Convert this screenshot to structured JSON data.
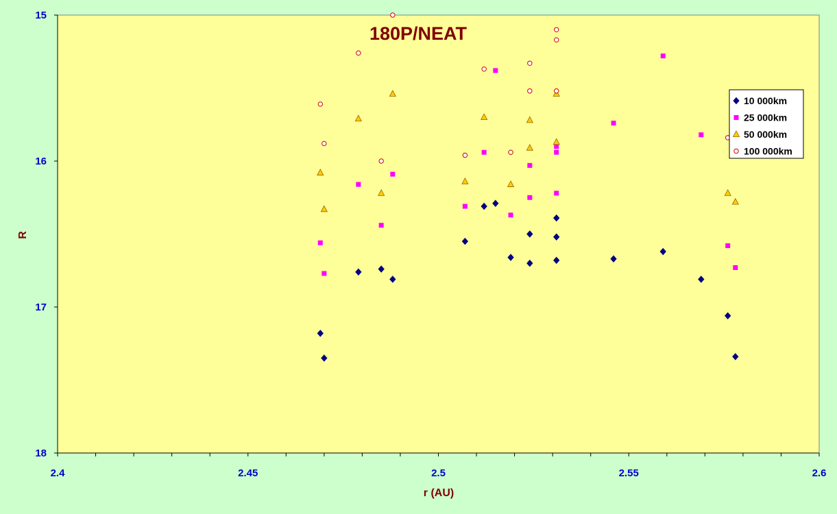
{
  "chart_data": {
    "type": "scatter",
    "title": "180P/NEAT",
    "xlabel": "r (AU)",
    "ylabel": "R",
    "xlim": [
      2.4,
      2.6
    ],
    "ylim": [
      15,
      18
    ],
    "y_inverted": true,
    "x_ticks": [
      "2.4",
      "2.45",
      "2.5",
      "2.55",
      "2.6"
    ],
    "y_ticks": [
      "15",
      "16",
      "17",
      "18"
    ],
    "x_tick_values": [
      2.4,
      2.45,
      2.5,
      2.55,
      2.6
    ],
    "y_tick_values": [
      15,
      16,
      17,
      18
    ],
    "x_minor_step": 0.01,
    "grid": false,
    "legend_position": "right",
    "colors": {
      "background": "#ccffcc",
      "plot_area": "#ffff99",
      "tick_labels": "#0000cc",
      "titles": "#800000"
    },
    "series": [
      {
        "name": "10 000km",
        "marker": "diamond",
        "color": "#000080",
        "points": [
          [
            2.469,
            17.18
          ],
          [
            2.47,
            17.35
          ],
          [
            2.479,
            16.76
          ],
          [
            2.485,
            16.74
          ],
          [
            2.488,
            16.81
          ],
          [
            2.507,
            16.55
          ],
          [
            2.512,
            16.31
          ],
          [
            2.515,
            16.29
          ],
          [
            2.519,
            16.66
          ],
          [
            2.524,
            16.5
          ],
          [
            2.524,
            16.7
          ],
          [
            2.531,
            16.39
          ],
          [
            2.531,
            16.52
          ],
          [
            2.531,
            16.68
          ],
          [
            2.546,
            16.67
          ],
          [
            2.559,
            16.62
          ],
          [
            2.569,
            16.81
          ],
          [
            2.576,
            17.06
          ],
          [
            2.578,
            17.34
          ]
        ]
      },
      {
        "name": "25 000km",
        "marker": "square",
        "color": "#ff00ff",
        "points": [
          [
            2.469,
            16.56
          ],
          [
            2.47,
            16.77
          ],
          [
            2.479,
            16.16
          ],
          [
            2.485,
            16.44
          ],
          [
            2.488,
            16.09
          ],
          [
            2.507,
            16.31
          ],
          [
            2.512,
            15.94
          ],
          [
            2.515,
            15.38
          ],
          [
            2.519,
            16.37
          ],
          [
            2.524,
            16.03
          ],
          [
            2.524,
            16.25
          ],
          [
            2.531,
            15.9
          ],
          [
            2.531,
            15.94
          ],
          [
            2.531,
            16.22
          ],
          [
            2.546,
            15.74
          ],
          [
            2.559,
            15.28
          ],
          [
            2.569,
            15.82
          ],
          [
            2.576,
            16.58
          ],
          [
            2.578,
            16.73
          ]
        ]
      },
      {
        "name": "50 000km",
        "marker": "triangle",
        "color": "#ffcc00",
        "points": [
          [
            2.469,
            16.08
          ],
          [
            2.47,
            16.33
          ],
          [
            2.479,
            15.71
          ],
          [
            2.485,
            16.22
          ],
          [
            2.488,
            15.54
          ],
          [
            2.507,
            16.14
          ],
          [
            2.512,
            15.7
          ],
          [
            2.524,
            15.91
          ],
          [
            2.524,
            15.72
          ],
          [
            2.519,
            16.16
          ],
          [
            2.531,
            15.54
          ],
          [
            2.531,
            15.87
          ],
          [
            2.576,
            16.22
          ],
          [
            2.578,
            16.28
          ]
        ]
      },
      {
        "name": "100 000km",
        "marker": "circle",
        "color": "#cc0000",
        "points": [
          [
            2.469,
            15.61
          ],
          [
            2.47,
            15.88
          ],
          [
            2.479,
            15.26
          ],
          [
            2.485,
            16.0
          ],
          [
            2.488,
            15.0
          ],
          [
            2.507,
            15.96
          ],
          [
            2.512,
            15.37
          ],
          [
            2.519,
            15.94
          ],
          [
            2.524,
            15.33
          ],
          [
            2.524,
            15.52
          ],
          [
            2.531,
            15.1
          ],
          [
            2.531,
            15.17
          ],
          [
            2.531,
            15.52
          ],
          [
            2.576,
            15.84
          ]
        ]
      }
    ]
  }
}
